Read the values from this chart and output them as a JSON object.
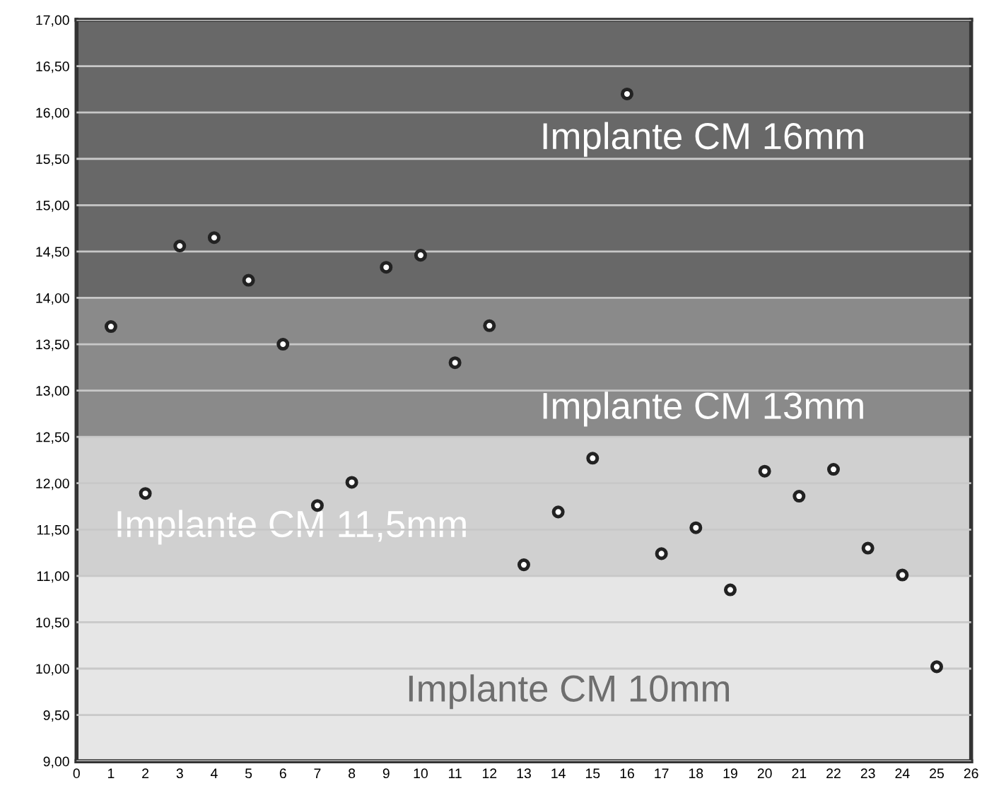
{
  "chart_data": {
    "type": "scatter",
    "marker": "circle",
    "grid": "y",
    "x": [
      1,
      2,
      3,
      4,
      5,
      6,
      7,
      8,
      9,
      10,
      11,
      12,
      13,
      14,
      15,
      16,
      17,
      18,
      19,
      20,
      21,
      22,
      23,
      24,
      25
    ],
    "series": [
      {
        "color": "#222222",
        "values": [
          13.69,
          11.89,
          14.56,
          14.65,
          14.19,
          13.5,
          11.76,
          12.01,
          14.33,
          14.46,
          13.3,
          13.7,
          11.12,
          11.69,
          12.27,
          16.2,
          11.24,
          11.52,
          10.85,
          12.13,
          11.86,
          12.15,
          11.3,
          11.01,
          10.02
        ]
      }
    ],
    "xlim": [
      0,
      26
    ],
    "xticks": [
      0,
      1,
      2,
      3,
      4,
      5,
      6,
      7,
      8,
      9,
      10,
      11,
      12,
      13,
      14,
      15,
      16,
      17,
      18,
      19,
      20,
      21,
      22,
      23,
      24,
      25,
      26
    ],
    "ylim": [
      9,
      17
    ],
    "yticks": [
      {
        "value": 9,
        "label": "9,00"
      },
      {
        "value": 9.5,
        "label": "9,50"
      },
      {
        "value": 10,
        "label": "10,00"
      },
      {
        "value": 10.5,
        "label": "10,50"
      },
      {
        "value": 11,
        "label": "11,00"
      },
      {
        "value": 11.5,
        "label": "11,50"
      },
      {
        "value": 12,
        "label": "12,00"
      },
      {
        "value": 12.5,
        "label": "12,50"
      },
      {
        "value": 13,
        "label": "13,00"
      },
      {
        "value": 13.5,
        "label": "13,50"
      },
      {
        "value": 14,
        "label": "14,00"
      },
      {
        "value": 14.5,
        "label": "14,50"
      },
      {
        "value": 15,
        "label": "15,00"
      },
      {
        "value": 15.5,
        "label": "15,50"
      },
      {
        "value": 16,
        "label": "16,00"
      },
      {
        "value": 16.5,
        "label": "16,50"
      },
      {
        "value": 17,
        "label": "17,00"
      }
    ],
    "bands": [
      {
        "axis": "y",
        "from": 9,
        "to": 11,
        "label": "Implante CM 10mm",
        "color": "#e6e6e6"
      },
      {
        "axis": "y",
        "from": 11,
        "to": 12.5,
        "label": "Implante CM 11,5mm",
        "color": "#d0d0d0"
      },
      {
        "axis": "y",
        "from": 12.5,
        "to": 14,
        "label": "Implante CM 13mm",
        "color": "#8a8a8a"
      },
      {
        "axis": "y",
        "from": 14,
        "to": 17,
        "label": "Implante CM 16mm",
        "color": "#686868"
      }
    ]
  }
}
